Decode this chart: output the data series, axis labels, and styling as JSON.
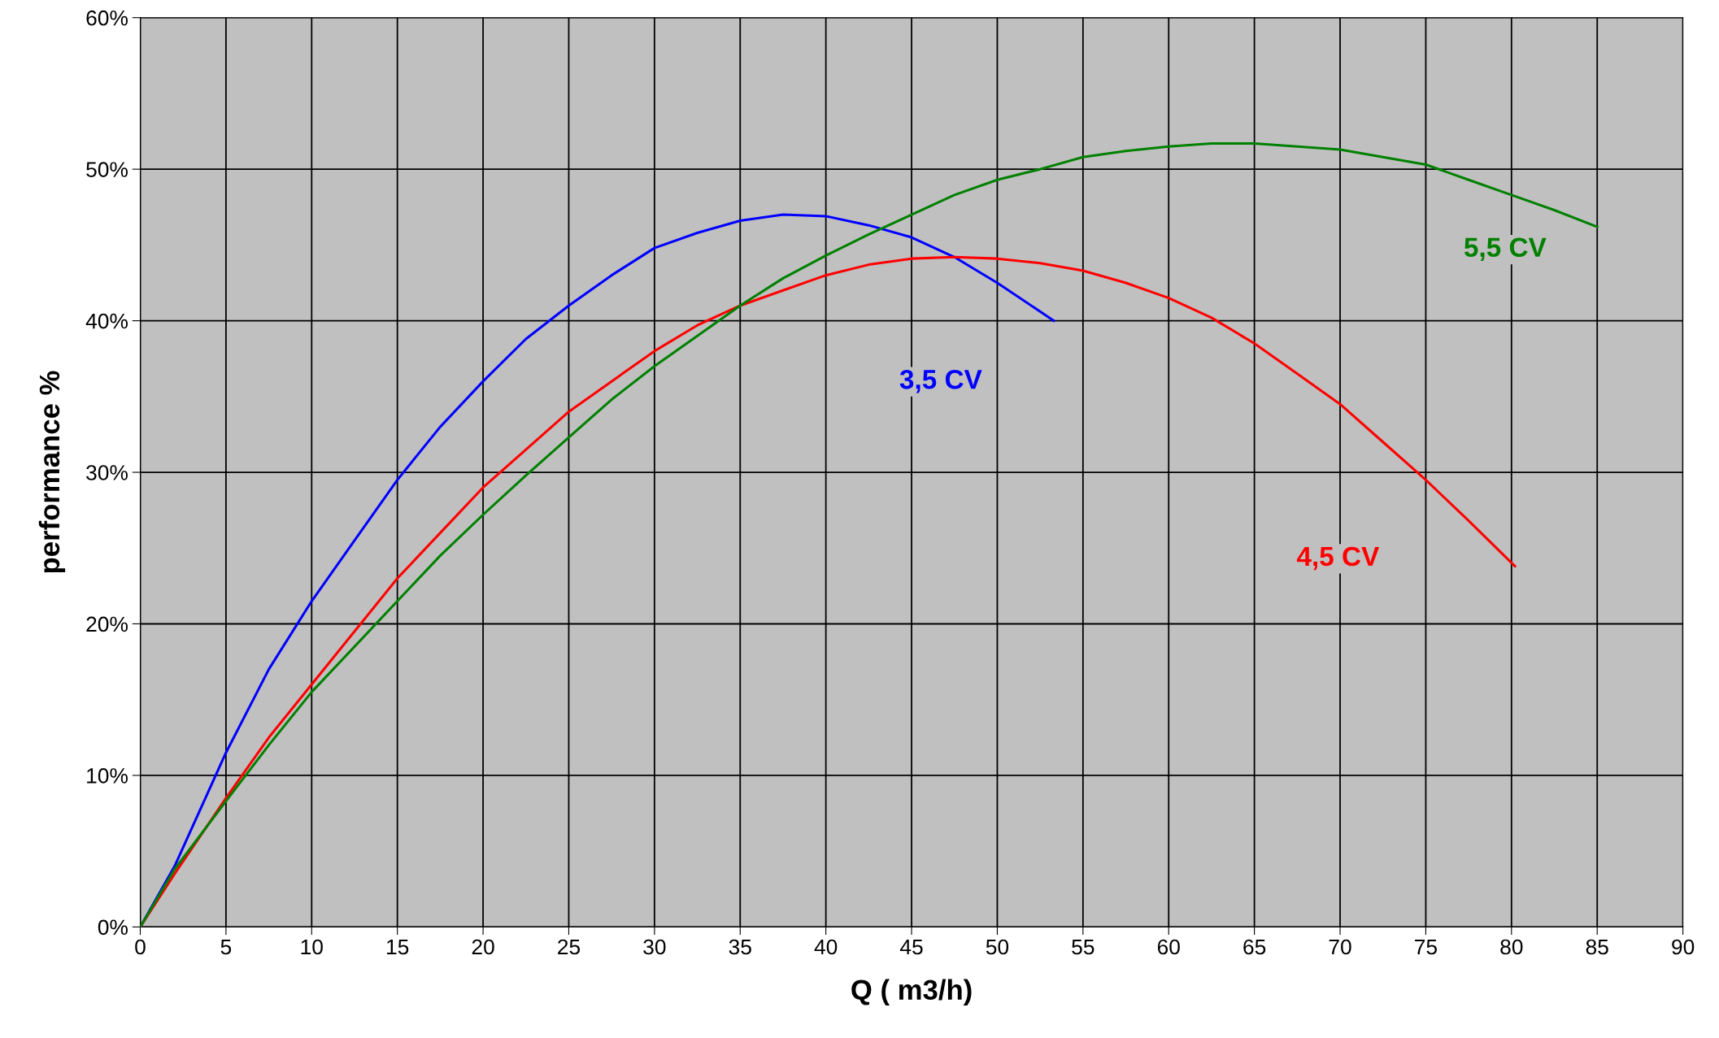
{
  "chart_data": {
    "type": "line",
    "xlabel": "Q ( m3/h)",
    "ylabel": "performance %",
    "xlim": [
      0,
      90
    ],
    "xticks": [
      0,
      5,
      10,
      15,
      20,
      25,
      30,
      35,
      40,
      45,
      50,
      55,
      60,
      65,
      70,
      75,
      80,
      85,
      90
    ],
    "ylim": [
      0,
      60
    ],
    "yticks": [
      {
        "value": 0,
        "label": "0%"
      },
      {
        "value": 10,
        "label": "10%"
      },
      {
        "value": 20,
        "label": "20%"
      },
      {
        "value": 30,
        "label": "30%"
      },
      {
        "value": 40,
        "label": "40%"
      },
      {
        "value": 50,
        "label": "50%"
      },
      {
        "value": 60,
        "label": "60%"
      }
    ],
    "grid": true,
    "legend": false,
    "marker": "none",
    "line_style": "solid",
    "series": [
      {
        "name": "3,5 CV",
        "color": "#0000ff",
        "x": [
          0,
          2,
          5,
          7.5,
          10,
          12.5,
          15,
          17.5,
          20,
          22.5,
          25,
          27.5,
          30,
          32.5,
          35,
          37.5,
          40,
          42.5,
          45,
          47.5,
          50,
          53.3
        ],
        "values": [
          0,
          4,
          11.5,
          17,
          21.5,
          25.5,
          29.5,
          33,
          36,
          38.8,
          41,
          43,
          44.8,
          45.8,
          46.6,
          47,
          46.9,
          46.3,
          45.5,
          44.2,
          42.5,
          40
        ]
      },
      {
        "name": "4,5 CV",
        "color": "#ff0000",
        "x": [
          0,
          2,
          5,
          7.5,
          10,
          12.5,
          15,
          17.5,
          20,
          22.5,
          25,
          27.5,
          30,
          32.5,
          35,
          37.5,
          40,
          42.5,
          45,
          47.5,
          50,
          52.5,
          55,
          57.5,
          60,
          62.5,
          65,
          67.5,
          70,
          72.5,
          75,
          77.5,
          80.2
        ],
        "values": [
          0,
          3.5,
          8.5,
          12.5,
          16,
          19.5,
          23,
          26,
          29,
          31.5,
          34,
          36,
          38,
          39.7,
          41,
          42,
          43,
          43.7,
          44.1,
          44.2,
          44.1,
          43.8,
          43.3,
          42.5,
          41.5,
          40.2,
          38.5,
          36.5,
          34.5,
          32,
          29.5,
          26.8,
          23.8
        ]
      },
      {
        "name": "5,5 CV",
        "color": "#008000",
        "x": [
          0,
          2,
          5,
          7.5,
          10,
          12.5,
          15,
          17.5,
          20,
          22.5,
          25,
          27.5,
          30,
          32.5,
          35,
          37.5,
          40,
          42.5,
          45,
          47.5,
          50,
          52.5,
          55,
          57.5,
          60,
          62.5,
          65,
          67.5,
          70,
          72.5,
          75,
          77.5,
          80,
          82.5,
          85
        ],
        "values": [
          0,
          3.8,
          8.3,
          12,
          15.5,
          18.5,
          21.5,
          24.5,
          27.2,
          29.8,
          32.3,
          34.8,
          37,
          39,
          41,
          42.8,
          44.3,
          45.7,
          47,
          48.3,
          49.3,
          50,
          50.8,
          51.2,
          51.5,
          51.7,
          51.7,
          51.5,
          51.3,
          50.8,
          50.3,
          49.3,
          48.3,
          47.3,
          46.2
        ]
      }
    ]
  }
}
